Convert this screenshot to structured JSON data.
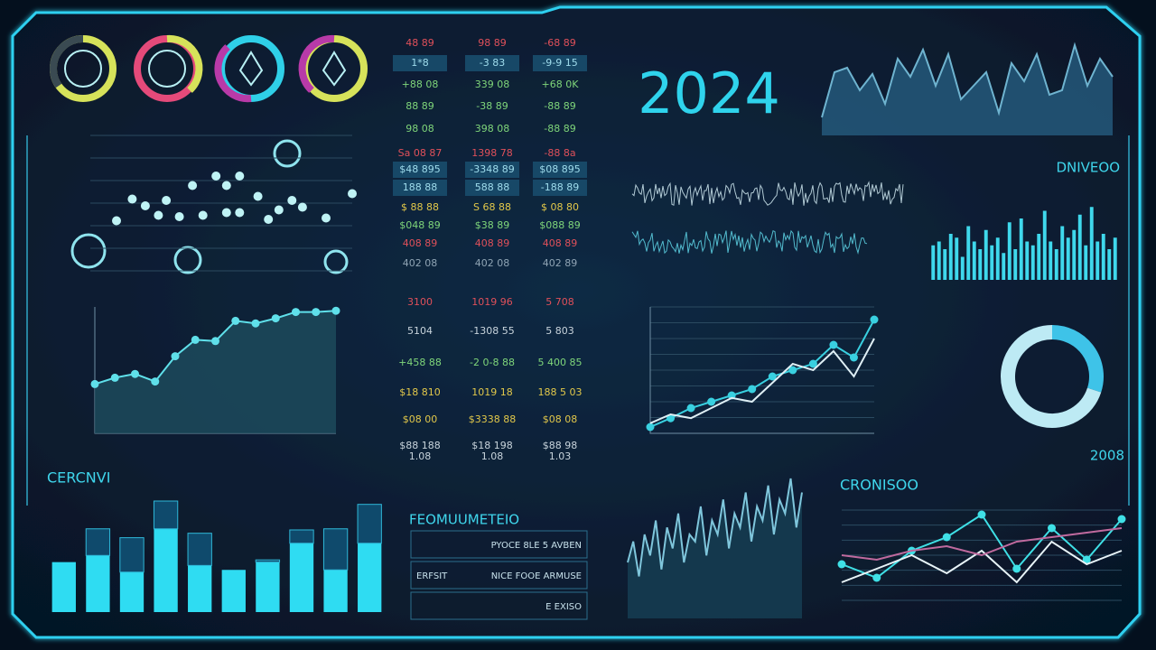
{
  "header": {
    "year": "2024"
  },
  "numbers_table": {
    "rows": [
      {
        "color": "#e0505a",
        "cells": [
          "48 89",
          "98 89",
          "-68 89"
        ]
      },
      {
        "color": "#9fdcec",
        "cells": [
          "1*8",
          "-3 83",
          "-9-9 15"
        ]
      },
      {
        "color": "#7fd67a",
        "cells": [
          "+88 08",
          "339 08",
          "+68 0K"
        ]
      },
      {
        "color": "#7fd67a",
        "cells": [
          "88 89",
          "-38 89",
          "-88 89"
        ]
      },
      {
        "color": "#7fd67a",
        "cells": [
          "98 08",
          "398 08",
          "-88 89"
        ]
      },
      {
        "color": "#e0505a",
        "cells": [
          "Sa 08 87",
          "1398 78",
          "-88 8a"
        ]
      },
      {
        "color": "#9fdcec",
        "cells": [
          "$48 895",
          "-3348 89",
          "$08 895"
        ]
      },
      {
        "color": "#9fdcec",
        "cells": [
          "188 88",
          "588 88",
          "-188 89"
        ]
      },
      {
        "color": "#e2c84a",
        "cells": [
          "$ 88 88",
          "S 68 88",
          "$ 08 80"
        ]
      },
      {
        "color": "#7fd67a",
        "cells": [
          "$048 89",
          "$38 89",
          "$088 89"
        ]
      },
      {
        "color": "#e0505a",
        "cells": [
          "408 89",
          "408 89",
          "408 89"
        ]
      },
      {
        "color": "#8fa4b4",
        "cells": [
          "402 08",
          "402 08",
          "402 89"
        ]
      },
      {
        "color": "#e0505a",
        "cells": [
          "3100",
          "1019 96",
          "5 708"
        ]
      },
      {
        "color": "#c8d4dc",
        "cells": [
          "5104",
          "-1308 55",
          "5 803"
        ]
      },
      {
        "color": "#7fd67a",
        "cells": [
          "+458 88",
          "-2 0-8 88",
          "5 400 85"
        ]
      },
      {
        "color": "#e2c84a",
        "cells": [
          "$18 810",
          "1019 18",
          "188 5 03"
        ]
      },
      {
        "color": "#e2c84a",
        "cells": [
          "$08 00",
          "$3338 88",
          "$08 08"
        ]
      },
      {
        "color": "#c8d4dc",
        "cells": [
          "$88 188",
          "$18 198",
          "$88 98"
        ]
      },
      {
        "color": "#c8d4dc",
        "cells": [
          "1.08",
          "1.08",
          "1.03"
        ]
      }
    ]
  },
  "form": {
    "title": "FEOMUUMETEIO",
    "rows": [
      [
        "PYOCE 8LE 5 AVBEN"
      ],
      [
        "ERFSIT",
        "NICE FOOE ARMUSE"
      ],
      [
        "E EXISO"
      ]
    ]
  },
  "chart_data": [
    {
      "type": "scatter",
      "color": "#bff3f5",
      "xlim": [
        0,
        100
      ],
      "ylim": [
        0,
        100
      ],
      "x": [
        10,
        16,
        21,
        26,
        29,
        34,
        39,
        43,
        48,
        52,
        57,
        52,
        57,
        64,
        68,
        72,
        77,
        81,
        90,
        100
      ],
      "values": [
        37,
        53,
        48,
        41,
        52,
        40,
        63,
        41,
        70,
        63,
        70,
        43,
        43,
        55,
        38,
        45,
        52,
        47,
        39,
        57
      ]
    },
    {
      "type": "area",
      "color": "#5fe0ea",
      "fill": "#1d4a5c",
      "markers": true,
      "ylim": [
        0,
        100
      ],
      "values": [
        39,
        44,
        47,
        41,
        61,
        74,
        73,
        89,
        87,
        91,
        96,
        96,
        97
      ]
    },
    {
      "type": "area",
      "color": "#6fb4d0",
      "fill": "#24587a",
      "markers": false,
      "ylim": [
        0,
        100
      ],
      "values": [
        20,
        70,
        75,
        50,
        68,
        35,
        85,
        65,
        95,
        55,
        90,
        40,
        55,
        70,
        25,
        80,
        60,
        90,
        45,
        50,
        100,
        55,
        85,
        65
      ]
    },
    {
      "type": "bar",
      "title": "DNIVEOO",
      "color": "#3fd8ec",
      "ylim": [
        0,
        100
      ],
      "values": [
        45,
        50,
        40,
        60,
        55,
        30,
        70,
        50,
        40,
        65,
        45,
        55,
        35,
        75,
        40,
        80,
        50,
        45,
        60,
        90,
        50,
        40,
        70,
        55,
        65,
        85,
        45,
        95,
        50,
        60,
        40,
        55
      ]
    },
    {
      "type": "line",
      "markers": true,
      "ylim": [
        0,
        100
      ],
      "series": [
        {
          "color": "#39d0e0",
          "values": [
            5,
            12,
            20,
            25,
            30,
            35,
            45,
            50,
            55,
            70,
            60,
            90
          ]
        },
        {
          "color": "#dfeff5",
          "values": [
            8,
            15,
            12,
            20,
            28,
            25,
            40,
            55,
            50,
            65,
            45,
            75
          ]
        }
      ]
    },
    {
      "type": "pie",
      "title": "2008",
      "values": [
        30,
        70
      ],
      "colors": [
        "#3ec3e8",
        "#bdeaf4"
      ]
    },
    {
      "type": "bar",
      "title": "CERCNVI",
      "stacked": true,
      "ylim": [
        0,
        100
      ],
      "series": [
        {
          "color": "#2fdcf2",
          "values": [
            45,
            51,
            36,
            75,
            42,
            38,
            45,
            62,
            38,
            62
          ]
        },
        {
          "color": "#0f4a6c",
          "values": [
            0,
            24,
            31,
            25,
            29,
            0,
            2,
            12,
            37,
            35
          ]
        }
      ]
    },
    {
      "type": "area",
      "color": "#7fc6dc",
      "fill": "#163d52",
      "markers": false,
      "ylim": [
        0,
        100
      ],
      "values": [
        40,
        55,
        30,
        60,
        45,
        70,
        35,
        65,
        50,
        75,
        40,
        60,
        55,
        80,
        45,
        70,
        60,
        85,
        50,
        75,
        65,
        90,
        55,
        80,
        70,
        95,
        60,
        85,
        75,
        100,
        65,
        90
      ]
    },
    {
      "type": "line",
      "title": "CRONISOO",
      "markers": true,
      "ylim": [
        0,
        100
      ],
      "series": [
        {
          "color": "#3fe0e6",
          "values": [
            40,
            25,
            55,
            70,
            95,
            35,
            80,
            45,
            90
          ]
        },
        {
          "color": "#e8f4f8",
          "values": [
            20,
            35,
            50,
            30,
            55,
            20,
            65,
            40,
            55
          ]
        },
        {
          "color": "#c06a9e",
          "values": [
            50,
            45,
            55,
            60,
            50,
            65,
            70,
            75,
            80
          ]
        }
      ]
    }
  ]
}
